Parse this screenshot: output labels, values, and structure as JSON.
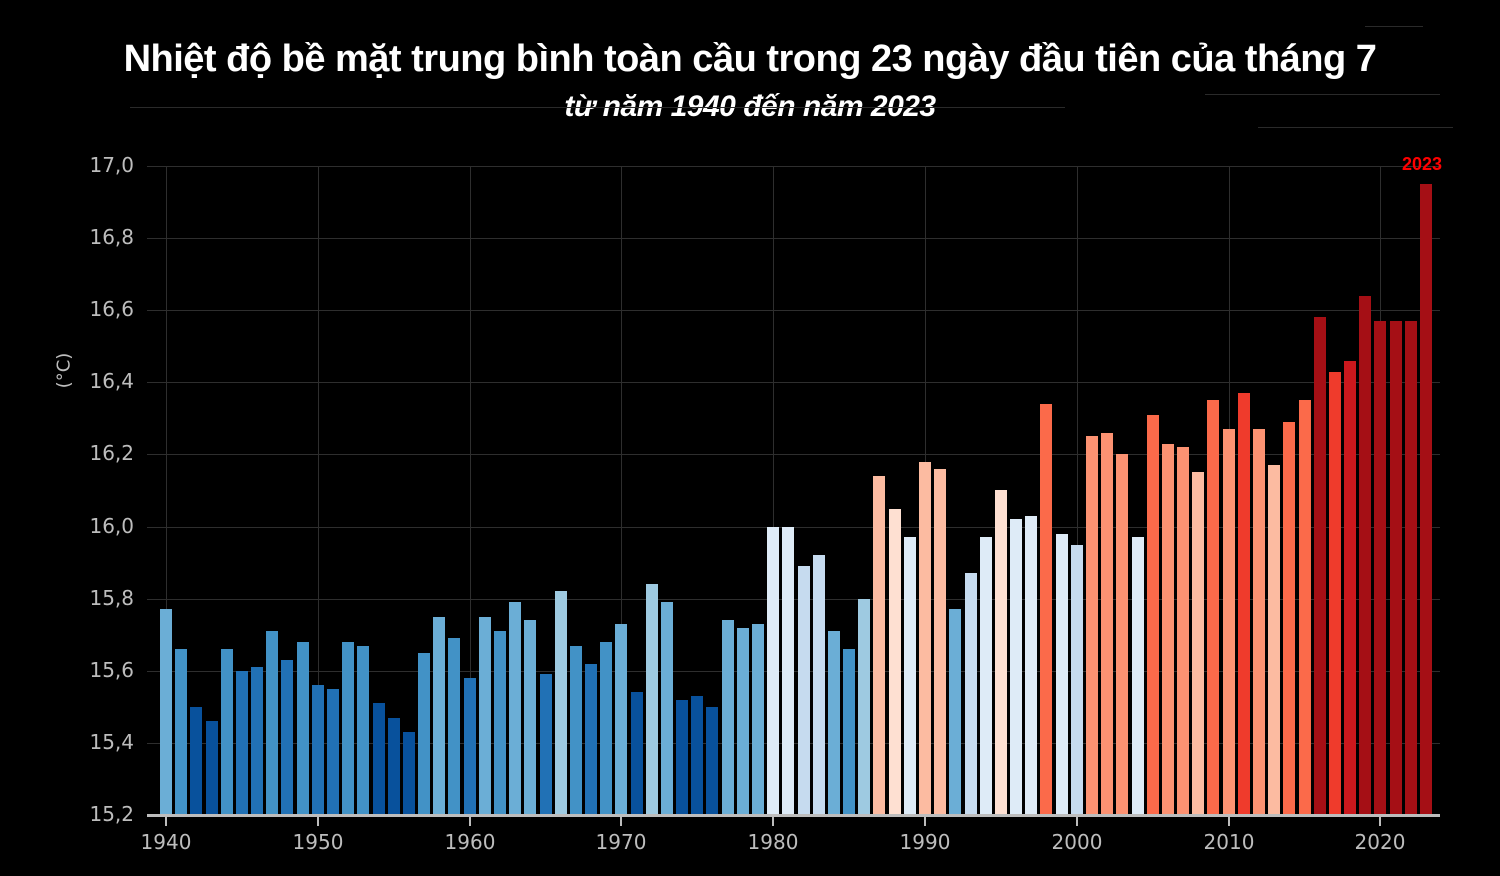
{
  "header": {
    "title": "Nhiệt độ bề mặt trung bình toàn cầu trong 23 ngày đầu tiên của tháng 7",
    "subtitle": "từ năm 1940 đến năm 2023"
  },
  "colors": {
    "background": "#000000",
    "axis_text": "#bdbdbd",
    "grid": "#2e2e2e",
    "highlight": "#ff0000"
  },
  "chart_data": {
    "type": "bar",
    "title": "Nhiệt độ bề mặt trung bình toàn cầu trong 23 ngày đầu tiên của tháng 7",
    "subtitle": "từ năm 1940 đến năm 2023",
    "xlabel": "",
    "ylabel": "(°C)",
    "ylim": [
      15.2,
      17.0
    ],
    "yticks": [
      "15,2",
      "15,4",
      "15,6",
      "15,8",
      "16,0",
      "16,2",
      "16,4",
      "16,6",
      "16,8",
      "17,0"
    ],
    "xticks": [
      "1940",
      "1950",
      "1960",
      "1970",
      "1980",
      "1990",
      "2000",
      "2010",
      "2020"
    ],
    "grid": true,
    "legend": null,
    "annotations": [
      {
        "text": "2023",
        "x": 2023,
        "color": "#ff0000"
      }
    ],
    "categories": [
      1940,
      1941,
      1942,
      1943,
      1944,
      1945,
      1946,
      1947,
      1948,
      1949,
      1950,
      1951,
      1952,
      1953,
      1954,
      1955,
      1956,
      1957,
      1958,
      1959,
      1960,
      1961,
      1962,
      1963,
      1964,
      1965,
      1966,
      1967,
      1968,
      1969,
      1970,
      1971,
      1972,
      1973,
      1974,
      1975,
      1976,
      1977,
      1978,
      1979,
      1980,
      1981,
      1982,
      1983,
      1984,
      1985,
      1986,
      1987,
      1988,
      1989,
      1990,
      1991,
      1992,
      1993,
      1994,
      1995,
      1996,
      1997,
      1998,
      1999,
      2000,
      2001,
      2002,
      2003,
      2004,
      2005,
      2006,
      2007,
      2008,
      2009,
      2010,
      2011,
      2012,
      2013,
      2014,
      2015,
      2016,
      2017,
      2018,
      2019,
      2020,
      2021,
      2022,
      2023
    ],
    "values": [
      15.77,
      15.66,
      15.5,
      15.46,
      15.66,
      15.6,
      15.61,
      15.71,
      15.63,
      15.68,
      15.56,
      15.55,
      15.68,
      15.67,
      15.51,
      15.47,
      15.43,
      15.65,
      15.75,
      15.69,
      15.58,
      15.75,
      15.71,
      15.79,
      15.74,
      15.59,
      15.82,
      15.67,
      15.62,
      15.68,
      15.73,
      15.54,
      15.84,
      15.79,
      15.52,
      15.53,
      15.5,
      15.74,
      15.72,
      15.73,
      16.0,
      16.0,
      15.89,
      15.92,
      15.71,
      15.66,
      15.8,
      16.14,
      16.05,
      15.97,
      16.18,
      16.16,
      15.77,
      15.87,
      15.97,
      16.1,
      16.02,
      16.03,
      16.34,
      15.98,
      15.95,
      16.25,
      16.26,
      16.2,
      15.97,
      16.31,
      16.23,
      16.22,
      16.15,
      16.35,
      16.27,
      16.37,
      16.27,
      16.17,
      16.29,
      16.35,
      16.58,
      16.43,
      16.46,
      16.64,
      16.57,
      16.57,
      16.57,
      16.95
    ],
    "bar_colors": [
      "#6baed6",
      "#4292c6",
      "#08519c",
      "#08519c",
      "#4292c6",
      "#2171b5",
      "#2171b5",
      "#4292c6",
      "#2171b5",
      "#4292c6",
      "#2171b5",
      "#2171b5",
      "#4292c6",
      "#4292c6",
      "#08519c",
      "#08519c",
      "#08519c",
      "#4292c6",
      "#6baed6",
      "#4292c6",
      "#2171b5",
      "#6baed6",
      "#4292c6",
      "#6baed6",
      "#6baed6",
      "#2171b5",
      "#9ecae1",
      "#4292c6",
      "#2171b5",
      "#4292c6",
      "#6baed6",
      "#08519c",
      "#9ecae1",
      "#6baed6",
      "#08519c",
      "#08519c",
      "#08519c",
      "#6baed6",
      "#6baed6",
      "#6baed6",
      "#deebf7",
      "#deebf7",
      "#c6dbef",
      "#c6dbef",
      "#6baed6",
      "#4292c6",
      "#9ecae1",
      "#fcbba1",
      "#fee0d2",
      "#deebf7",
      "#fcbba1",
      "#fcbba1",
      "#6baed6",
      "#c6dbef",
      "#deebf7",
      "#fee0d2",
      "#deebf7",
      "#deebf7",
      "#fb6a4a",
      "#deebf7",
      "#c6dbef",
      "#fc9272",
      "#fc9272",
      "#fc9272",
      "#deebf7",
      "#fb6a4a",
      "#fc9272",
      "#fc9272",
      "#fcbba1",
      "#fb6a4a",
      "#fc9272",
      "#ef3b2c",
      "#fc9272",
      "#fcbba1",
      "#fb6a4a",
      "#fb6a4a",
      "#a50f15",
      "#ef3b2c",
      "#cb181d",
      "#a50f15",
      "#a50f15",
      "#a50f15",
      "#a50f15",
      "#a50f15"
    ]
  }
}
